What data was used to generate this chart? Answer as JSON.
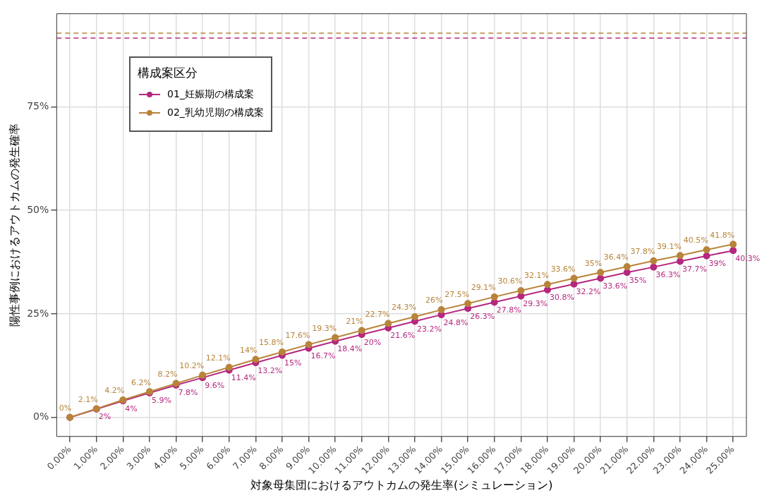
{
  "chart_data": {
    "type": "line",
    "xlabel": "対象母集団におけるアウトカムの発生率(シミュレーション)",
    "ylabel": "陽性事例におけるアウトカムの発生確率",
    "categories": [
      "0.00%",
      "1.00%",
      "2.00%",
      "3.00%",
      "4.00%",
      "5.00%",
      "6.00%",
      "7.00%",
      "8.00%",
      "9.00%",
      "10.00%",
      "11.00%",
      "12.00%",
      "13.00%",
      "14.00%",
      "15.00%",
      "16.00%",
      "17.00%",
      "18.00%",
      "19.00%",
      "20.00%",
      "21.00%",
      "22.00%",
      "23.00%",
      "24.00%",
      "25.00%"
    ],
    "series": [
      {
        "name": "01_妊娠期の構成案",
        "color": "#b5287f",
        "values": [
          0,
          2,
          4,
          5.9,
          7.8,
          9.6,
          11.4,
          13.2,
          15,
          16.7,
          18.4,
          20,
          21.6,
          23.2,
          24.8,
          26.3,
          27.8,
          29.3,
          30.8,
          32.2,
          33.6,
          35,
          36.3,
          37.7,
          39,
          40.3
        ],
        "value_labels": [
          null,
          "2%",
          "4%",
          "5.9%",
          "7.8%",
          "9.6%",
          "11.4%",
          "13.2%",
          "15%",
          "16.7%",
          "18.4%",
          "20%",
          "21.6%",
          "23.2%",
          "24.8%",
          "26.3%",
          "27.8%",
          "29.3%",
          "30.8%",
          "32.2%",
          "33.6%",
          "35%",
          "36.3%",
          "37.7%",
          "39%",
          "40.3%"
        ]
      },
      {
        "name": "02_乳幼児期の構成案",
        "color": "#b8843a",
        "values": [
          0,
          2.1,
          4.2,
          6.2,
          8.2,
          10.2,
          12.1,
          14,
          15.8,
          17.6,
          19.3,
          21,
          22.7,
          24.3,
          26,
          27.5,
          29.1,
          30.6,
          32.1,
          33.6,
          35,
          36.4,
          37.8,
          39.1,
          40.5,
          41.8
        ],
        "value_labels": [
          "0%",
          "2.1%",
          "4.2%",
          "6.2%",
          "8.2%",
          "10.2%",
          "12.1%",
          "14%",
          "15.8%",
          "17.6%",
          "19.3%",
          "21%",
          "22.7%",
          "24.3%",
          "26%",
          "27.5%",
          "29.1%",
          "30.6%",
          "32.1%",
          "33.6%",
          "35%",
          "36.4%",
          "37.8%",
          "39.1%",
          "40.5%",
          "41.8%"
        ]
      }
    ],
    "ylim": [
      -4.6,
      97.5
    ],
    "yticks": [
      {
        "value": 0,
        "label": "0%"
      },
      {
        "value": 25,
        "label": "25%"
      },
      {
        "value": 50,
        "label": "50%"
      },
      {
        "value": 75,
        "label": "75%"
      }
    ],
    "ref_lines": [
      {
        "axis": "y",
        "value": 92.8,
        "color": "#b8843a",
        "line_style": "dashed"
      },
      {
        "axis": "y",
        "value": 91.6,
        "color": "#b5287f",
        "line_style": "dashed"
      }
    ],
    "legend": "top left",
    "legend_title": "構成案区分",
    "grid": true,
    "marker": "circle",
    "line_style": "solid"
  }
}
